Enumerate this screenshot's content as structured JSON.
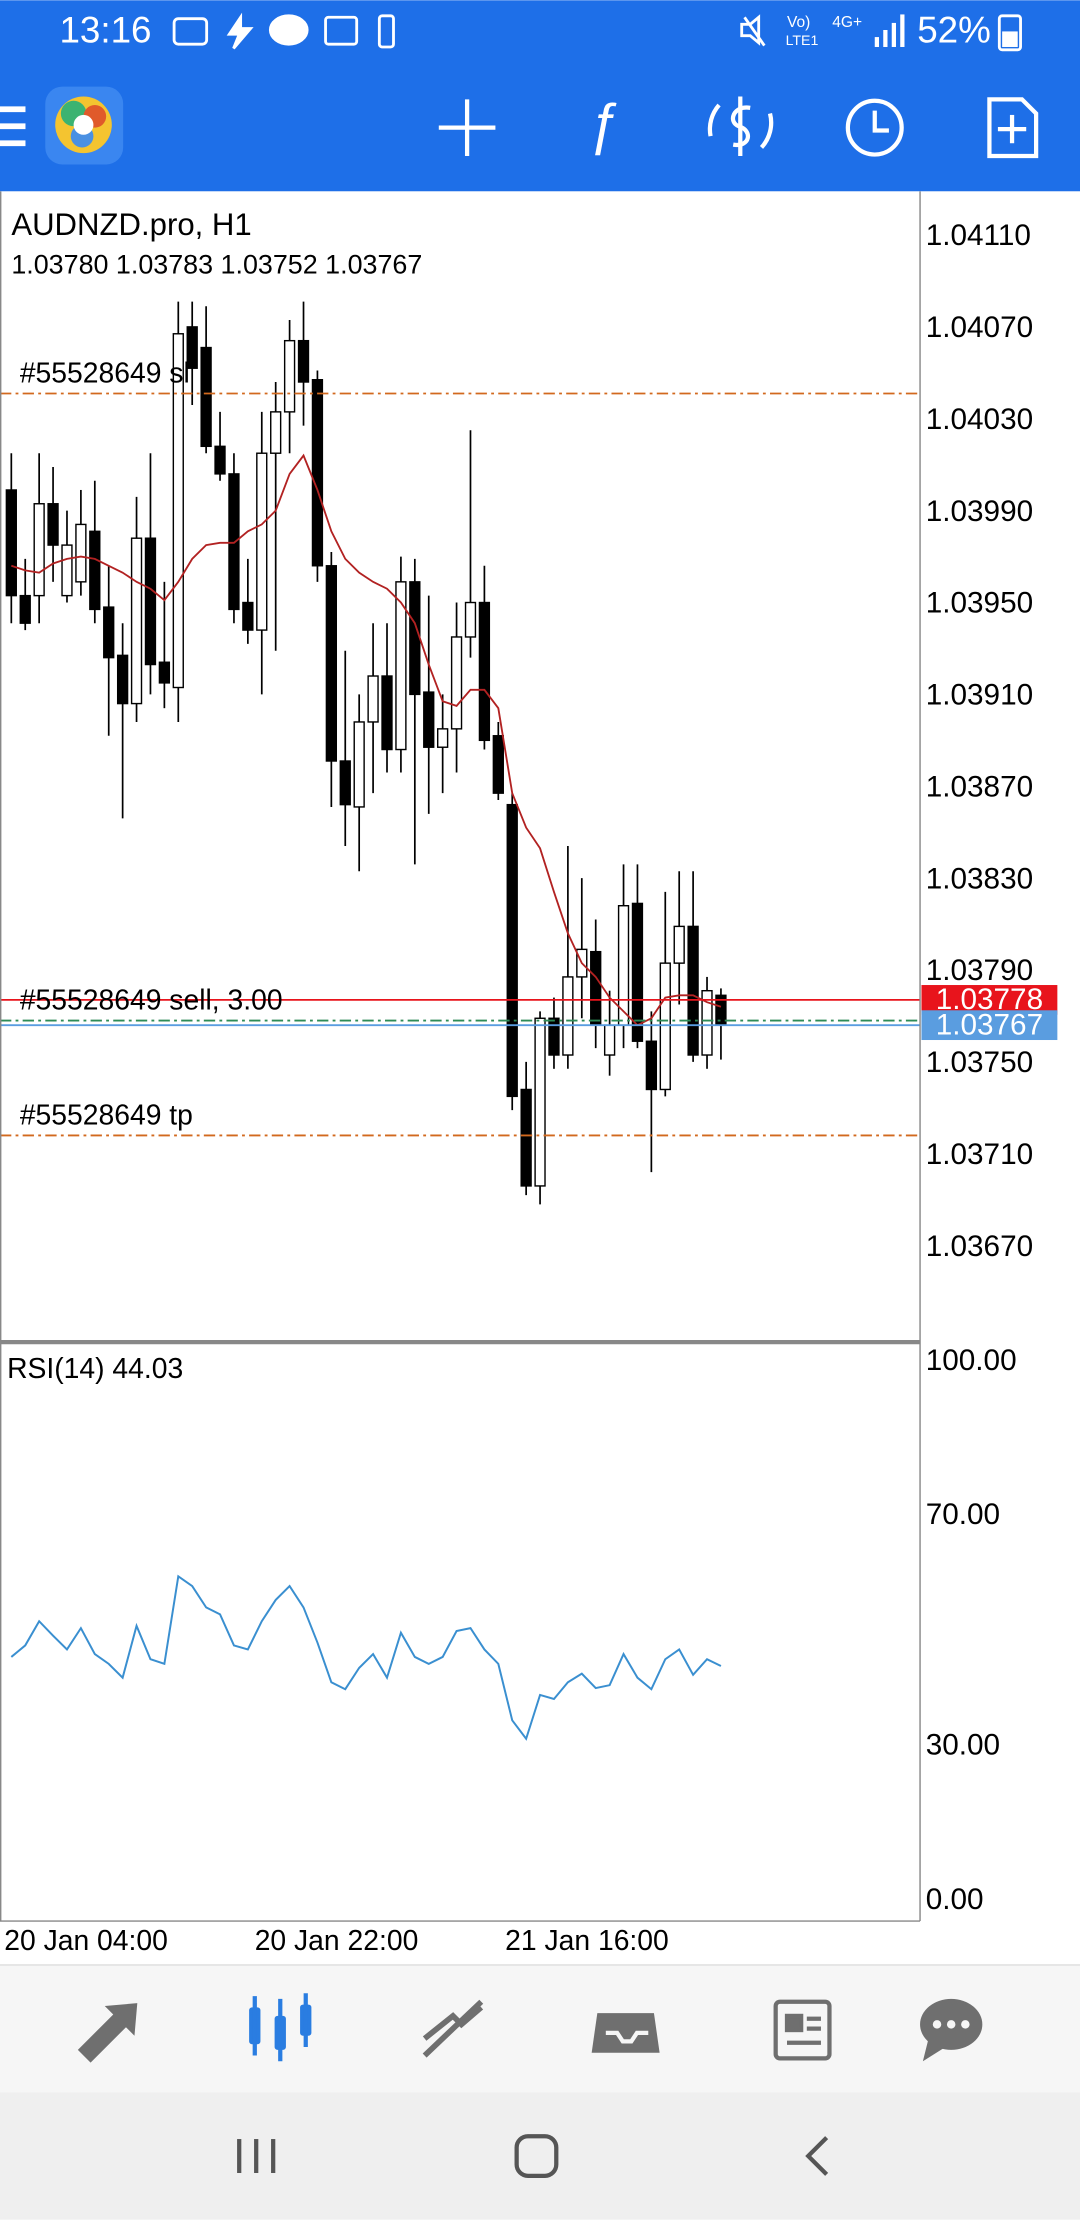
{
  "status_bar": {
    "time": "13:16",
    "volte": "Vo)",
    "lte": "LTE1",
    "network": "4G+",
    "battery": "52%"
  },
  "chart_data": [
    {
      "type": "candlestick",
      "title": "AUDNZD.pro, H1",
      "ohlc_label": "1.03780 1.03783 1.03752 1.03767",
      "open": [
        1.04,
        1.03954,
        1.03954,
        1.03994,
        1.03954,
        1.0396,
        1.03982,
        1.03949,
        1.03928,
        1.03907,
        1.03979,
        1.03925,
        1.03914,
        1.04071,
        1.04062,
        1.04019,
        1.04007,
        1.03951,
        1.03939,
        1.04016,
        1.04034,
        1.04065,
        1.04048,
        1.03967,
        1.03882,
        1.03862,
        1.03899,
        1.03919,
        1.03887,
        1.0396,
        1.03912,
        1.03888,
        1.03896,
        1.03936,
        1.03951,
        1.03893,
        1.03863,
        1.03739,
        1.03697,
        1.0377,
        1.03754,
        1.03788,
        1.03799,
        1.03754,
        1.03767,
        1.0382,
        1.0376,
        1.03739,
        1.03794,
        1.0381,
        1.03754,
        1.0378
      ],
      "high": [
        1.04016,
        1.0397,
        1.04016,
        1.0401,
        1.03991,
        1.04,
        1.04004,
        1.03967,
        1.03942,
        1.03997,
        1.04016,
        1.0396,
        1.04082,
        1.04082,
        1.0408,
        1.04034,
        1.04016,
        1.0397,
        1.04034,
        1.04047,
        1.04074,
        1.04082,
        1.04052,
        1.03973,
        1.0393,
        1.03911,
        1.03942,
        1.03942,
        1.03971,
        1.0397,
        1.03954,
        1.03911,
        1.03951,
        1.04026,
        1.03967,
        1.03899,
        1.03868,
        1.03751,
        1.03773,
        1.03779,
        1.03845,
        1.03831,
        1.03813,
        1.03782,
        1.03837,
        1.03837,
        1.03773,
        1.03825,
        1.03834,
        1.03834,
        1.03788,
        1.03783
      ],
      "low": [
        1.03942,
        1.03939,
        1.03942,
        1.0396,
        1.03951,
        1.03954,
        1.03942,
        1.03893,
        1.03857,
        1.03899,
        1.03911,
        1.03905,
        1.03899,
        1.04037,
        1.04016,
        1.04004,
        1.03942,
        1.03933,
        1.03911,
        1.0393,
        1.04016,
        1.04028,
        1.0396,
        1.03862,
        1.03845,
        1.03834,
        1.03868,
        1.03877,
        1.03877,
        1.03837,
        1.03859,
        1.03868,
        1.03877,
        1.03927,
        1.03887,
        1.03865,
        1.0373,
        1.03693,
        1.03689,
        1.03748,
        1.03748,
        1.0377,
        1.03757,
        1.03745,
        1.03757,
        1.03757,
        1.03703,
        1.03736,
        1.03776,
        1.03751,
        1.03748,
        1.03752
      ],
      "close": [
        1.03954,
        1.03942,
        1.03994,
        1.03976,
        1.03976,
        1.03985,
        1.03948,
        1.03927,
        1.03907,
        1.03979,
        1.03924,
        1.03916,
        1.04068,
        1.04053,
        1.04019,
        1.04007,
        1.03948,
        1.03939,
        1.04016,
        1.04034,
        1.04065,
        1.04047,
        1.03967,
        1.03882,
        1.03863,
        1.03899,
        1.03919,
        1.03887,
        1.0396,
        1.03911,
        1.03888,
        1.03896,
        1.03936,
        1.03951,
        1.03891,
        1.03868,
        1.03736,
        1.03697,
        1.0377,
        1.03754,
        1.03788,
        1.038,
        1.03767,
        1.03767,
        1.03819,
        1.0376,
        1.03739,
        1.03794,
        1.0381,
        1.03754,
        1.03782,
        1.03767
      ],
      "bull_color": "#ffffff",
      "bear_color": "#000000",
      "overlay_line": {
        "color": "#b22222",
        "values": [
          1.03967,
          1.03965,
          1.03964,
          1.03968,
          1.0397,
          1.03971,
          1.0397,
          1.03967,
          1.03964,
          1.0396,
          1.03957,
          1.03952,
          1.0396,
          1.0397,
          1.03976,
          1.03977,
          1.03977,
          1.03982,
          1.03985,
          1.03991,
          1.04007,
          1.04015,
          1.04,
          1.03982,
          1.0397,
          1.03964,
          1.0396,
          1.03957,
          1.03951,
          1.03942,
          1.03924,
          1.03908,
          1.03906,
          1.03913,
          1.03913,
          1.03905,
          1.03868,
          1.03853,
          1.03844,
          1.03825,
          1.03807,
          1.03794,
          1.03788,
          1.03779,
          1.03773,
          1.03767,
          1.0377,
          1.03779,
          1.0378,
          1.0378,
          1.03777,
          1.03775
        ]
      },
      "levels": [
        {
          "label": "#55528649 sl",
          "value": 1.04042,
          "color": "#d2691e"
        },
        {
          "label": "#55528649 sell, 3.00",
          "value": 1.03769,
          "color": "#2e8b57"
        },
        {
          "label": "#55528649 tp",
          "value": 1.03719,
          "color": "#d2691e"
        }
      ],
      "price_tags": [
        {
          "value": 1.03778,
          "label": "1.03778",
          "color": "#e8141c"
        },
        {
          "value": 1.03767,
          "label": "1.03767",
          "color": "#5a9de0"
        }
      ],
      "ylim": [
        1.03629,
        1.0413
      ],
      "yticks": [
        {
          "value": 1.0411,
          "label": "1.04110"
        },
        {
          "value": 1.0407,
          "label": "1.04070"
        },
        {
          "value": 1.0403,
          "label": "1.04030"
        },
        {
          "value": 1.0399,
          "label": "1.03990"
        },
        {
          "value": 1.0395,
          "label": "1.03950"
        },
        {
          "value": 1.0391,
          "label": "1.03910"
        },
        {
          "value": 1.0387,
          "label": "1.03870"
        },
        {
          "value": 1.0383,
          "label": "1.03830"
        },
        {
          "value": 1.0379,
          "label": "1.03790"
        },
        {
          "value": 1.0375,
          "label": "1.03750"
        },
        {
          "value": 1.0371,
          "label": "1.03710"
        },
        {
          "value": 1.0367,
          "label": "1.03670"
        }
      ],
      "grid": true
    },
    {
      "type": "line",
      "title": "RSI(14) 44.03",
      "categories": [
        "20 Jan 04:00",
        null,
        null,
        null,
        null,
        null,
        null,
        null,
        null,
        null,
        null,
        null,
        null,
        null,
        null,
        null,
        null,
        null,
        "20 Jan 22:00",
        null,
        null,
        null,
        null,
        null,
        null,
        null,
        null,
        null,
        null,
        null,
        null,
        null,
        null,
        null,
        null,
        null,
        "21 Jan 16:00",
        null,
        null,
        null,
        null,
        null,
        null,
        null,
        null,
        null,
        null,
        null,
        null,
        null,
        null,
        null
      ],
      "color": "#3a8fd0",
      "values": [
        45.6,
        47.6,
        51.8,
        49.3,
        46.9,
        50.6,
        46.1,
        44.4,
        42.0,
        51.0,
        45.2,
        44.4,
        59.6,
        57.9,
        54.2,
        53.0,
        47.6,
        46.9,
        51.8,
        55.5,
        57.9,
        54.2,
        48.1,
        41.2,
        40.0,
        43.7,
        46.1,
        42.0,
        49.8,
        45.6,
        44.4,
        45.6,
        50.1,
        50.6,
        46.9,
        44.4,
        34.6,
        31.4,
        39.0,
        38.3,
        41.2,
        42.7,
        40.2,
        40.7,
        46.1,
        42.0,
        40.0,
        45.2,
        46.9,
        42.5,
        45.2,
        44.03
      ],
      "ylim": [
        0,
        100
      ],
      "yticks": [
        {
          "value": 100,
          "label": "100.00"
        },
        {
          "value": 70,
          "label": "70.00"
        },
        {
          "value": 30,
          "label": "30.00"
        },
        {
          "value": 0,
          "label": "0.00"
        }
      ],
      "grid": true
    }
  ]
}
